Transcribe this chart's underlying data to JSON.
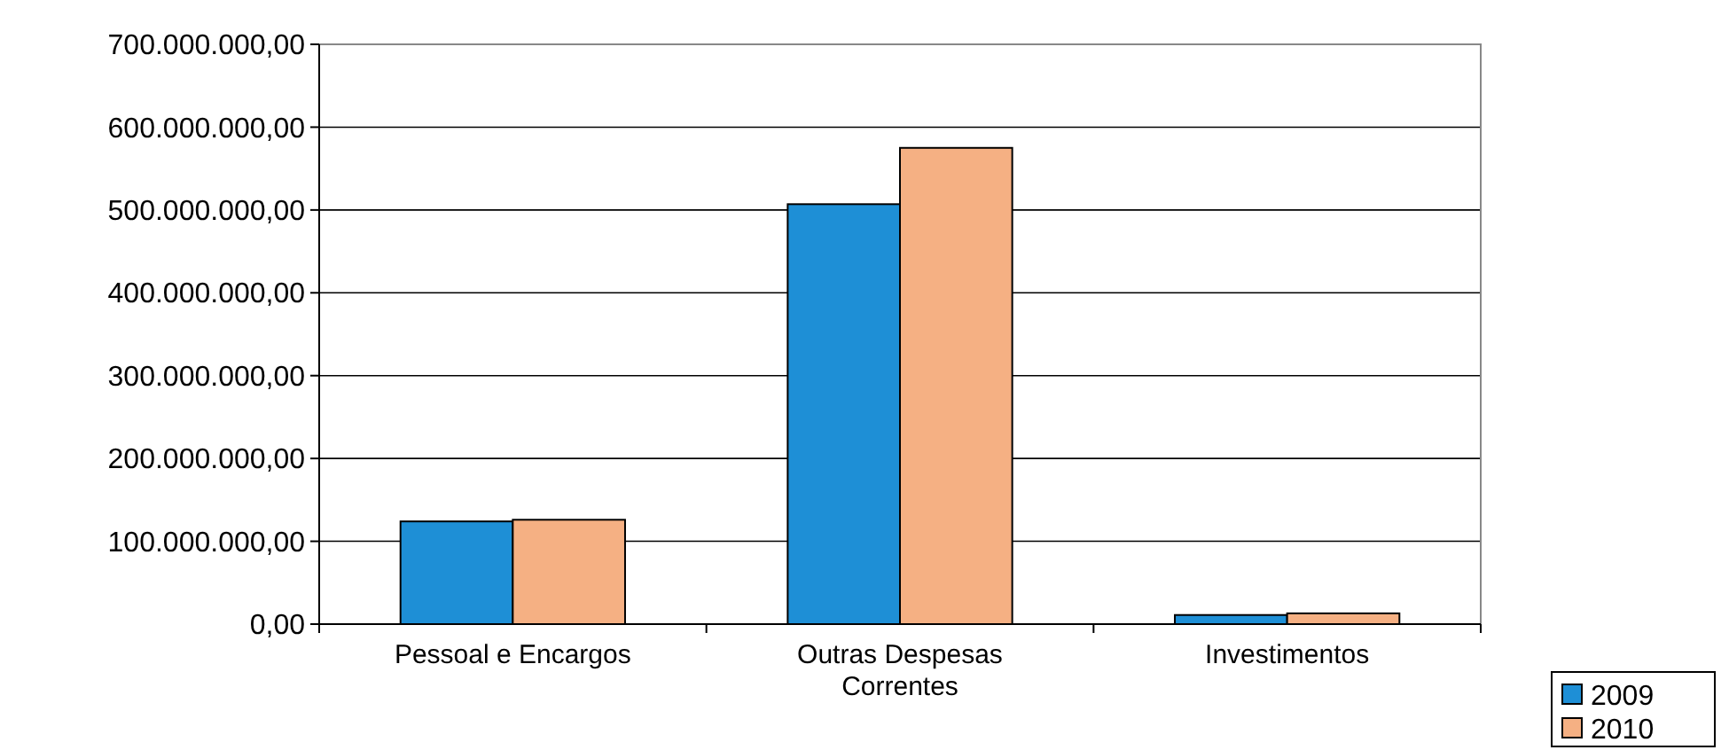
{
  "chart_data": {
    "type": "bar",
    "categories": [
      "Pessoal e Encargos",
      "Outras Despesas Correntes",
      "Investimentos"
    ],
    "series": [
      {
        "name": "2009",
        "color": "#1e8fd6",
        "values": [
          124000000,
          507000000,
          11000000
        ]
      },
      {
        "name": "2010",
        "color": "#f5b083",
        "values": [
          126000000,
          575000000,
          13000000
        ]
      }
    ],
    "ylim": [
      0,
      700000000
    ],
    "yticks": [
      {
        "value": 0,
        "label": "0,00"
      },
      {
        "value": 100000000,
        "label": "100.000.000,00"
      },
      {
        "value": 200000000,
        "label": "200.000.000,00"
      },
      {
        "value": 300000000,
        "label": "300.000.000,00"
      },
      {
        "value": 400000000,
        "label": "400.000.000,00"
      },
      {
        "value": 500000000,
        "label": "500.000.000,00"
      },
      {
        "value": 600000000,
        "label": "600.000.000,00"
      },
      {
        "value": 700000000,
        "label": "700.000.000,00"
      }
    ],
    "grid": "y",
    "legend": "bottom right"
  }
}
